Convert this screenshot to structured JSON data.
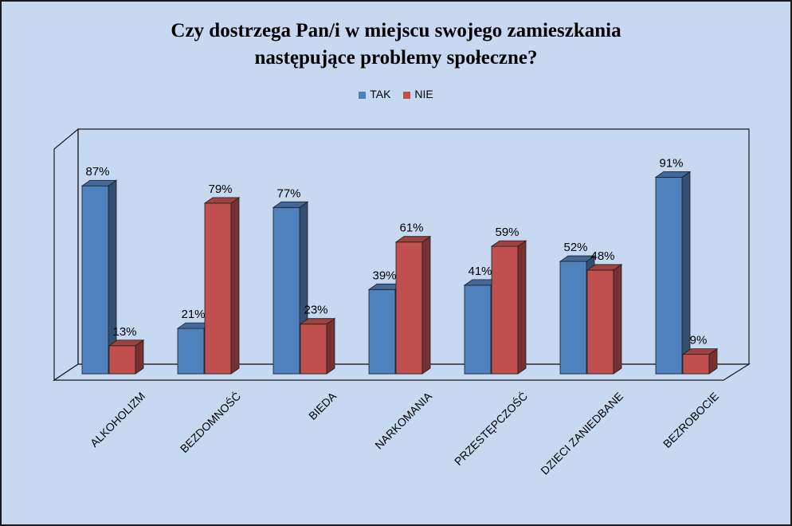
{
  "chart_data": {
    "type": "bar",
    "title": "Czy dostrzega Pan/i  w miejscu swojego zamieszkania\nnastępujące problemy społeczne?",
    "categories": [
      "ALKOHOLIZM",
      "BEZDOMNOŚĆ",
      "BIEDA",
      "NARKOMANIA",
      "PRZESTĘPCZOŚĆ",
      "DZIECI ZANIEDBANE",
      "BEZROBOCIE"
    ],
    "series": [
      {
        "name": "TAK",
        "values": [
          87,
          21,
          77,
          39,
          41,
          52,
          91
        ],
        "labels": [
          "87%",
          "21%",
          "77%",
          "39%",
          "41%",
          "52%",
          "91%"
        ]
      },
      {
        "name": "NIE",
        "values": [
          13,
          79,
          23,
          61,
          59,
          48,
          9
        ],
        "labels": [
          "13%",
          "79%",
          "23%",
          "61%",
          "59%",
          "48%",
          "9%"
        ]
      }
    ],
    "ylim": [
      0,
      100
    ],
    "legend_position": "top",
    "grid": false,
    "colors": {
      "TAK": "#4f81bd",
      "NIE": "#c0504d",
      "background": "#c6d9f1"
    }
  }
}
